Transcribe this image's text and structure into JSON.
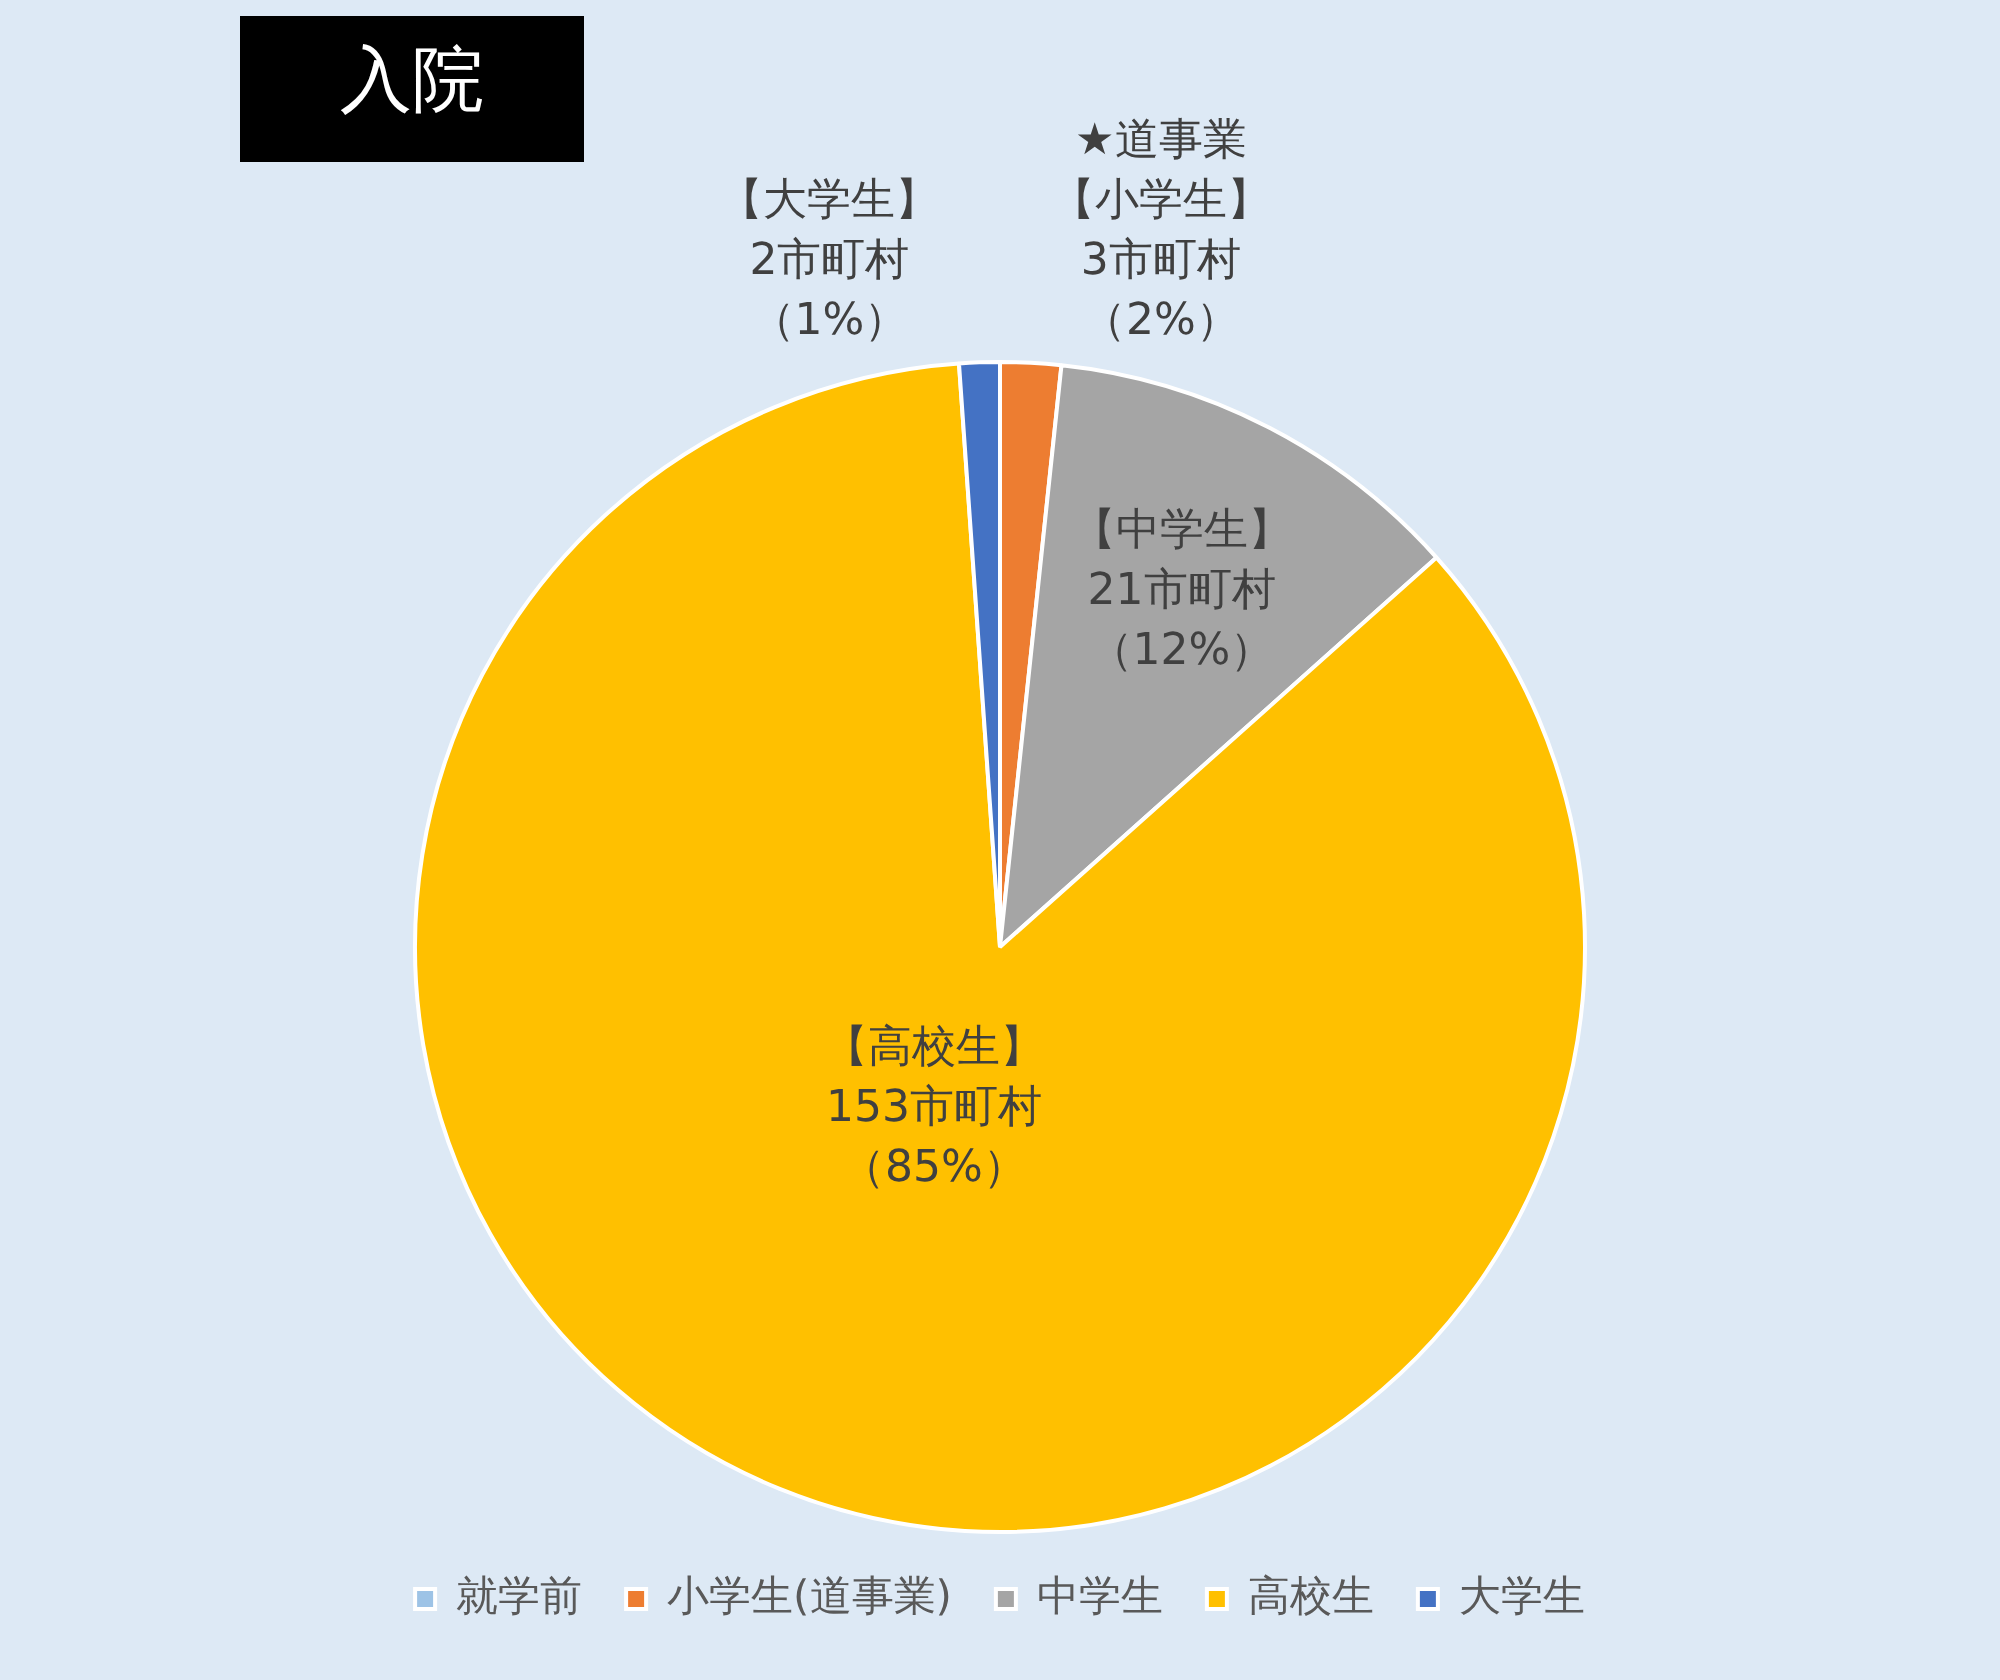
{
  "chart_data": {
    "type": "pie",
    "title": "入院",
    "categories": [
      "就学前",
      "小学生(道事業)",
      "中学生",
      "高校生",
      "大学生"
    ],
    "values": [
      0,
      3,
      21,
      153,
      2
    ],
    "colors": [
      "#9dc3e6",
      "#ed7d31",
      "#a5a5a5",
      "#ffc000",
      "#4472c4"
    ],
    "value_labels": [
      null,
      "★道事業【小学生】3市町村（2%）",
      "【中学生】21市町村（12%）",
      "【高校生】153市町村（85%）",
      "【大学生】2市町村（1%）"
    ],
    "legend": "bottom"
  }
}
